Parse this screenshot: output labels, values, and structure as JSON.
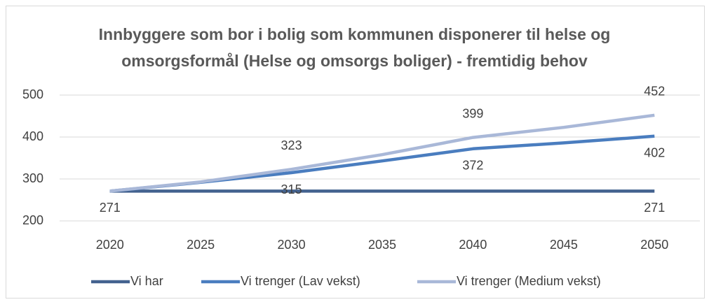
{
  "chart_data": {
    "type": "line",
    "title": "Innbyggere som bor i bolig som kommunen disponerer til helse og omsorgsformål (Helse og omsorgs boliger) - fremtidig behov",
    "x": [
      2020,
      2025,
      2030,
      2035,
      2040,
      2045,
      2050
    ],
    "series": [
      {
        "name": "Vi har",
        "color": "#43628f",
        "values": [
          271,
          271,
          271,
          271,
          271,
          271,
          271
        ],
        "labeled": [
          0,
          6
        ]
      },
      {
        "name": "Vi trenger (Lav vekst)",
        "color": "#4a7dbf",
        "values": [
          271,
          292,
          315,
          343,
          372,
          386,
          402
        ],
        "labeled": [
          2,
          4,
          6
        ]
      },
      {
        "name": "Vi trenger (Medium vekst)",
        "color": "#a9b8d8",
        "values": [
          271,
          293,
          323,
          358,
          399,
          423,
          452
        ],
        "labeled": [
          2,
          4,
          6
        ]
      }
    ],
    "ylim": [
      200,
      500
    ],
    "yticks": [
      200,
      300,
      400,
      500
    ],
    "grid": true,
    "legend": "bottom"
  }
}
